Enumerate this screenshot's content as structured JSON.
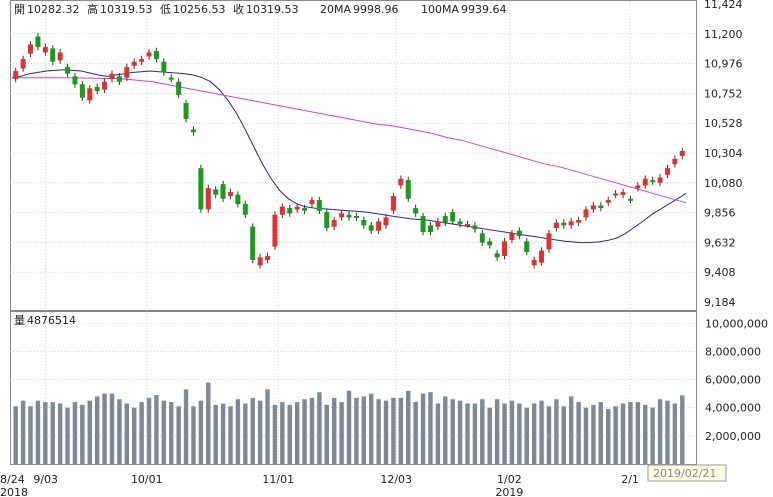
{
  "header": {
    "open_label": "開",
    "open_value": "10282.32",
    "high_label": "高",
    "high_value": "10319.53",
    "low_label": "低",
    "low_value": "10256.53",
    "close_label": "收",
    "close_value": "10319.53",
    "ma20_label": "20MA",
    "ma20_value": "9998.96",
    "ma100_label": "100MA",
    "ma100_value": "9939.64"
  },
  "volume_header": {
    "label": "量",
    "value": "4876514"
  },
  "tooltip_date": "2019/02/21",
  "colors": {
    "up": "#e03030",
    "down": "#1a9a1a",
    "ma20": "#2a2a7a",
    "ma100": "#cc44cc",
    "volume": "#7f8994",
    "grid": "#bbbbbb"
  },
  "chart_data": [
    {
      "type": "candlestick",
      "title": "",
      "ylim": [
        9184,
        11424
      ],
      "y_ticks": [
        "11,424",
        "11,200",
        "10,976",
        "10,752",
        "10,528",
        "10,304",
        "10,080",
        "9,856",
        "9,632",
        "9,408",
        "9,184"
      ],
      "x_tick_labels": [
        {
          "label": "8/24",
          "year": "2018"
        },
        {
          "label": "9/03",
          "year": ""
        },
        {
          "label": "10/01",
          "year": ""
        },
        {
          "label": "11/01",
          "year": ""
        },
        {
          "label": "12/03",
          "year": ""
        },
        {
          "label": "1/02",
          "year": "2019"
        },
        {
          "label": "2/1",
          "year": ""
        }
      ],
      "series": [
        {
          "name": "20MA",
          "values": [
            10870,
            10880,
            10900,
            10910,
            10920,
            10925,
            10930,
            10925,
            10920,
            10905,
            10890,
            10880,
            10890,
            10900,
            10910,
            10915,
            10920,
            10915,
            10910,
            10905,
            10900,
            10890,
            10870,
            10840,
            10780,
            10700,
            10600,
            10480,
            10350,
            10220,
            10110,
            10020,
            9960,
            9920,
            9900,
            9890,
            9885,
            9880,
            9875,
            9870,
            9865,
            9860,
            9850,
            9840,
            9830,
            9820,
            9810,
            9805,
            9800,
            9790,
            9780,
            9770,
            9760,
            9750,
            9740,
            9730,
            9720,
            9710,
            9700,
            9690,
            9680,
            9670,
            9660,
            9650,
            9640,
            9635,
            9630,
            9632,
            9636,
            9648,
            9665,
            9700,
            9745,
            9790,
            9840,
            9880,
            9920,
            9960,
            10000
          ]
        },
        {
          "name": "100MA",
          "values": [
            10870,
            10870,
            10870,
            10870,
            10870,
            10868,
            10866,
            10864,
            10860,
            10850,
            10840,
            10820,
            10800,
            10780,
            10760,
            10740,
            10720,
            10700,
            10680,
            10660,
            10640,
            10620,
            10600,
            10580,
            10560,
            10540,
            10520,
            10510,
            10490,
            10470,
            10450,
            10420,
            10400,
            10370,
            10340,
            10310,
            10280,
            10250,
            10220,
            10200,
            10170,
            10140,
            10110,
            10080,
            10050,
            10020,
            9990,
            9960,
            9930
          ]
        }
      ],
      "candles": [
        {
          "o": 10860,
          "c": 10920
        },
        {
          "o": 10940,
          "c": 11010
        },
        {
          "o": 11050,
          "c": 11120
        },
        {
          "o": 11180,
          "c": 11100
        },
        {
          "o": 11060,
          "c": 11100
        },
        {
          "o": 11090,
          "c": 10990
        },
        {
          "o": 11000,
          "c": 11060
        },
        {
          "o": 10950,
          "c": 10900
        },
        {
          "o": 10880,
          "c": 10820
        },
        {
          "o": 10820,
          "c": 10720
        },
        {
          "o": 10700,
          "c": 10790
        },
        {
          "o": 10800,
          "c": 10770
        },
        {
          "o": 10780,
          "c": 10840
        },
        {
          "o": 10860,
          "c": 10900
        },
        {
          "o": 10880,
          "c": 10840
        },
        {
          "o": 10870,
          "c": 10950
        },
        {
          "o": 10960,
          "c": 10990
        },
        {
          "o": 10990,
          "c": 11010
        },
        {
          "o": 11030,
          "c": 11060
        },
        {
          "o": 11070,
          "c": 11010
        },
        {
          "o": 10990,
          "c": 10910
        },
        {
          "o": 10870,
          "c": 10860
        },
        {
          "o": 10840,
          "c": 10740
        },
        {
          "o": 10680,
          "c": 10560
        },
        {
          "o": 10480,
          "c": 10460
        },
        {
          "o": 10190,
          "c": 9880
        },
        {
          "o": 9880,
          "c": 10040
        },
        {
          "o": 10030,
          "c": 9990
        },
        {
          "o": 10070,
          "c": 9960
        },
        {
          "o": 9980,
          "c": 10010
        },
        {
          "o": 9990,
          "c": 9920
        },
        {
          "o": 9920,
          "c": 9840
        },
        {
          "o": 9750,
          "c": 9500
        },
        {
          "o": 9460,
          "c": 9520
        },
        {
          "o": 9500,
          "c": 9530
        },
        {
          "o": 9600,
          "c": 9840
        },
        {
          "o": 9840,
          "c": 9900
        },
        {
          "o": 9890,
          "c": 9850
        },
        {
          "o": 9880,
          "c": 9900
        },
        {
          "o": 9890,
          "c": 9870
        },
        {
          "o": 9920,
          "c": 9950
        },
        {
          "o": 9950,
          "c": 9870
        },
        {
          "o": 9860,
          "c": 9740
        },
        {
          "o": 9750,
          "c": 9800
        },
        {
          "o": 9820,
          "c": 9850
        },
        {
          "o": 9840,
          "c": 9820
        },
        {
          "o": 9830,
          "c": 9820
        },
        {
          "o": 9800,
          "c": 9760
        },
        {
          "o": 9760,
          "c": 9720
        },
        {
          "o": 9720,
          "c": 9790
        },
        {
          "o": 9760,
          "c": 9820
        },
        {
          "o": 9870,
          "c": 9980
        },
        {
          "o": 10060,
          "c": 10110
        },
        {
          "o": 10100,
          "c": 9960
        },
        {
          "o": 9890,
          "c": 9850
        },
        {
          "o": 9830,
          "c": 9710
        },
        {
          "o": 9760,
          "c": 9710
        },
        {
          "o": 9750,
          "c": 9790
        },
        {
          "o": 9830,
          "c": 9780
        },
        {
          "o": 9860,
          "c": 9790
        },
        {
          "o": 9790,
          "c": 9770
        },
        {
          "o": 9770,
          "c": 9770
        },
        {
          "o": 9760,
          "c": 9730
        },
        {
          "o": 9700,
          "c": 9630
        },
        {
          "o": 9640,
          "c": 9610
        },
        {
          "o": 9550,
          "c": 9520
        },
        {
          "o": 9530,
          "c": 9640
        },
        {
          "o": 9650,
          "c": 9700
        },
        {
          "o": 9720,
          "c": 9680
        },
        {
          "o": 9640,
          "c": 9560
        },
        {
          "o": 9460,
          "c": 9500
        },
        {
          "o": 9480,
          "c": 9570
        },
        {
          "o": 9580,
          "c": 9700
        },
        {
          "o": 9740,
          "c": 9780
        },
        {
          "o": 9780,
          "c": 9760
        },
        {
          "o": 9760,
          "c": 9790
        },
        {
          "o": 9780,
          "c": 9800
        },
        {
          "o": 9820,
          "c": 9880
        },
        {
          "o": 9880,
          "c": 9910
        },
        {
          "o": 9910,
          "c": 9890
        },
        {
          "o": 9930,
          "c": 9950
        },
        {
          "o": 9990,
          "c": 10000
        },
        {
          "o": 9990,
          "c": 10010
        },
        {
          "o": 9960,
          "c": 9950
        },
        {
          "o": 10040,
          "c": 10060
        },
        {
          "o": 10060,
          "c": 10110
        },
        {
          "o": 10100,
          "c": 10090
        },
        {
          "o": 10080,
          "c": 10120
        },
        {
          "o": 10140,
          "c": 10190
        },
        {
          "o": 10220,
          "c": 10260
        },
        {
          "o": 10282,
          "c": 10319
        }
      ]
    },
    {
      "type": "bar",
      "title": "",
      "ylim": [
        0,
        10800000
      ],
      "y_ticks": [
        "10,000,000",
        "8,000,000",
        "6,000,000",
        "4,000,000",
        "2,000,000"
      ],
      "values": [
        4100000,
        4500000,
        4100000,
        4500000,
        4400000,
        4400000,
        4300000,
        4000000,
        4400000,
        4200000,
        4500000,
        4800000,
        5000000,
        5000000,
        4600000,
        4300000,
        4000000,
        4400000,
        4700000,
        4900000,
        4500000,
        4400000,
        4100000,
        5300000,
        4100000,
        4500000,
        5800000,
        4200000,
        4300000,
        4100000,
        4600000,
        4300000,
        4700000,
        4500000,
        5300000,
        4200000,
        4400000,
        4200000,
        4400000,
        4600000,
        4700000,
        5100000,
        4200000,
        4700000,
        4400000,
        5200000,
        4700000,
        4800000,
        5000000,
        4600000,
        4500000,
        4700000,
        4700000,
        5200000,
        4400000,
        5000000,
        5100000,
        4300000,
        4800000,
        4600000,
        4500000,
        4300000,
        4300000,
        4600000,
        4000000,
        4600000,
        4300000,
        4500000,
        4300000,
        4000000,
        4300000,
        4500000,
        4100000,
        4600000,
        4100000,
        4800000,
        4400000,
        4000000,
        4200000,
        4400000,
        3900000,
        4100000,
        4300000,
        4400000,
        4400000,
        4200000,
        4000000,
        4600000,
        4500000,
        4300000,
        4876514
      ]
    }
  ]
}
